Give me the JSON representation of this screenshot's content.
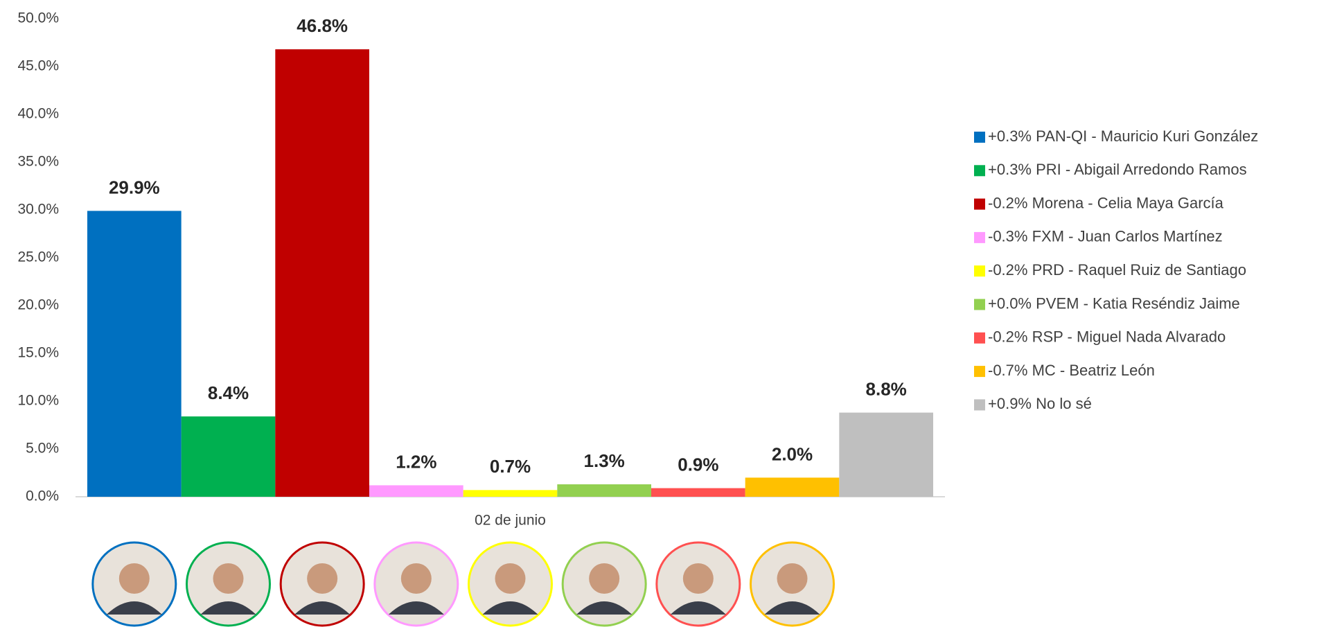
{
  "chart_data": {
    "type": "bar",
    "categories": [
      "02 de junio"
    ],
    "series": [
      {
        "name": "+0.3% PAN-QI - Mauricio Kuri González",
        "color": "#0070c0",
        "values": [
          29.9
        ],
        "value_labels": [
          "29.9%"
        ]
      },
      {
        "name": "+0.3% PRI - Abigail Arredondo Ramos",
        "color": "#00b050",
        "values": [
          8.4
        ],
        "value_labels": [
          "8.4%"
        ]
      },
      {
        "name": "-0.2% Morena - Celia Maya García",
        "color": "#c00000",
        "values": [
          46.8
        ],
        "value_labels": [
          "46.8%"
        ]
      },
      {
        "name": "-0.3% FXM - Juan Carlos Martínez",
        "color": "#ff99ff",
        "values": [
          1.2
        ],
        "value_labels": [
          "1.2%"
        ]
      },
      {
        "name": "-0.2% PRD - Raquel Ruiz de Santiago",
        "color": "#ffff00",
        "values": [
          0.7
        ],
        "value_labels": [
          "0.7%"
        ]
      },
      {
        "name": "+0.0% PVEM - Katia Reséndiz Jaime",
        "color": "#92d050",
        "values": [
          1.3
        ],
        "value_labels": [
          "1.3%"
        ]
      },
      {
        "name": "-0.2% RSP - Miguel Nada Alvarado",
        "color": "#ff5050",
        "values": [
          0.9
        ],
        "value_labels": [
          "0.9%"
        ]
      },
      {
        "name": "-0.7% MC - Beatriz León",
        "color": "#ffc000",
        "values": [
          2.0
        ],
        "value_labels": [
          "2.0%"
        ]
      },
      {
        "name": "+0.9% No lo sé",
        "color": "#bfbfbf",
        "values": [
          8.8
        ],
        "value_labels": [
          "8.8%"
        ]
      }
    ],
    "ylim": [
      0,
      50
    ],
    "yticks": [
      {
        "value": 0,
        "label": "0.0%"
      },
      {
        "value": 5,
        "label": "5.0%"
      },
      {
        "value": 10,
        "label": "10.0%"
      },
      {
        "value": 15,
        "label": "15.0%"
      },
      {
        "value": 20,
        "label": "20.0%"
      },
      {
        "value": 25,
        "label": "25.0%"
      },
      {
        "value": 30,
        "label": "30.0%"
      },
      {
        "value": 35,
        "label": "35.0%"
      },
      {
        "value": 40,
        "label": "40.0%"
      },
      {
        "value": 45,
        "label": "45.0%"
      },
      {
        "value": 50,
        "label": "50.0%"
      }
    ],
    "grid": false,
    "legend": "right"
  }
}
